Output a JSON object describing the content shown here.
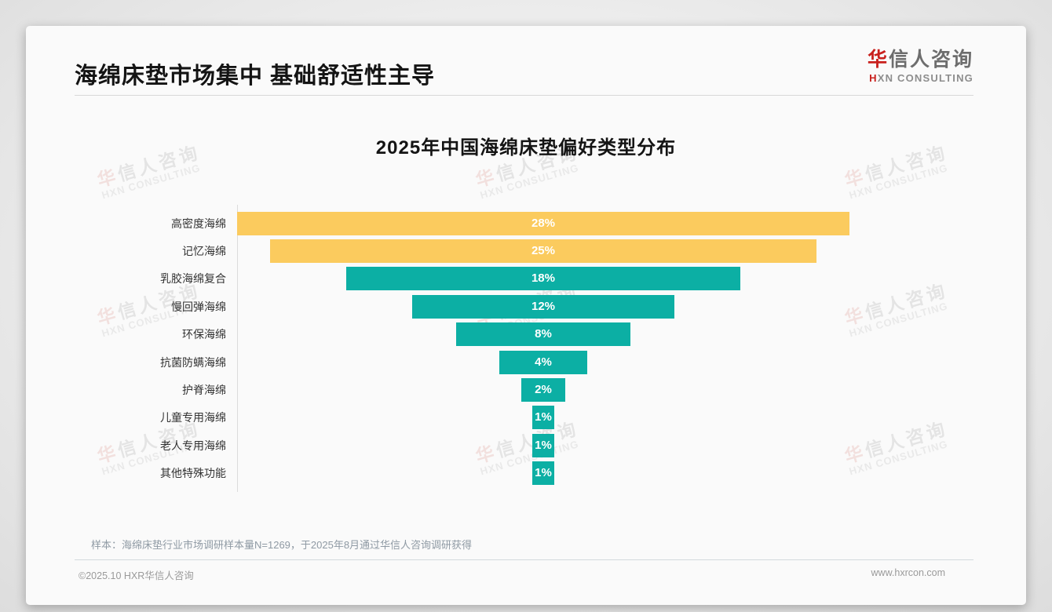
{
  "header": {
    "title": "海绵床垫市场集中 基础舒适性主导",
    "logo": {
      "cn_accent": "华",
      "cn_rest": "信人咨询",
      "en_accent": "H",
      "en_rest": "XN CONSULTING"
    }
  },
  "watermark": {
    "cn_accent": "华",
    "cn_rest": "信人咨询",
    "en": "HXN CONSULTING"
  },
  "chart_data": {
    "type": "bar",
    "variant": "horizontal-centered-funnel",
    "title": "2025年中国海绵床垫偏好类型分布",
    "categories": [
      "高密度海绵",
      "记忆海绵",
      "乳胶海绵复合",
      "慢回弹海绵",
      "环保海绵",
      "抗菌防螨海绵",
      "护脊海绵",
      "儿童专用海绵",
      "老人专用海绵",
      "其他特殊功能"
    ],
    "values": [
      28,
      25,
      18,
      12,
      8,
      4,
      2,
      1,
      1,
      1
    ],
    "value_labels": [
      "28%",
      "25%",
      "18%",
      "12%",
      "8%",
      "4%",
      "2%",
      "1%",
      "1%",
      "1%"
    ],
    "unit": "%",
    "xlim": [
      0,
      28
    ],
    "grid": false,
    "legend": "none",
    "highlight_count": 2,
    "colors": {
      "highlight": "#fbcb5e",
      "default": "#0cafa4",
      "value_text": "#ffffff"
    }
  },
  "footnote": {
    "sample_note": "样本：海绵床垫行业市场调研样本量N=1269，于2025年8月通过华信人咨询调研获得"
  },
  "footer": {
    "copyright": "©2025.10 HXR华信人咨询",
    "website": "www.hxrcon.com"
  }
}
